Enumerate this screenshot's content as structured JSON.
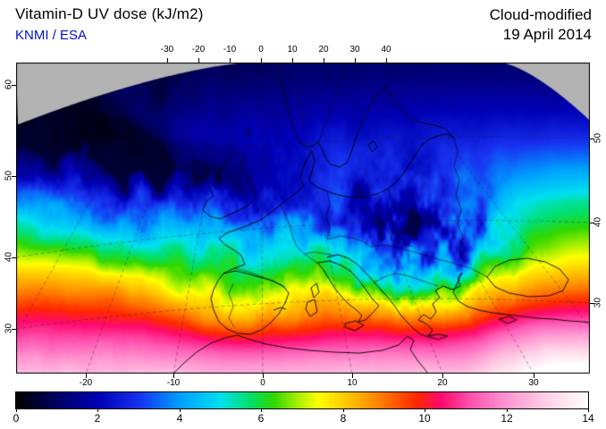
{
  "header": {
    "title": "Vitamin-D UV dose (kJ/m2)",
    "source": "KNMI / ESA",
    "mode": "Cloud-modified",
    "date": "19 April 2014"
  },
  "colors": {
    "source_text": "#0011cc",
    "no_data_gray": "#b2b2b2",
    "background": "#ffffff",
    "coastline": "#000000"
  },
  "axes": {
    "top": [
      "-30",
      "-20",
      "-10",
      "0",
      "10",
      "20",
      "30",
      "40"
    ],
    "bottom": [
      "-20",
      "-10",
      "0",
      "10",
      "20",
      "30"
    ],
    "left": [
      "60",
      "50",
      "40",
      "30"
    ],
    "right": [
      "50",
      "40",
      "30"
    ]
  },
  "colorbar": {
    "labels": [
      "0",
      "2",
      "4",
      "6",
      "8",
      "10",
      "12",
      "14"
    ],
    "min": 0,
    "max": 14,
    "stops": [
      [
        0,
        "#000000"
      ],
      [
        1,
        "#000066"
      ],
      [
        2,
        "#0000b4"
      ],
      [
        3,
        "#1832f0"
      ],
      [
        4,
        "#00a0ff"
      ],
      [
        5,
        "#00e0f0"
      ],
      [
        5.7,
        "#00e070"
      ],
      [
        6.3,
        "#30d800"
      ],
      [
        6.9,
        "#a8f000"
      ],
      [
        7.4,
        "#ffff00"
      ],
      [
        8.2,
        "#ffbe00"
      ],
      [
        9,
        "#ff7800"
      ],
      [
        9.8,
        "#ff2800"
      ],
      [
        10.4,
        "#ff0a6e"
      ],
      [
        11.2,
        "#ff5ab4"
      ],
      [
        12,
        "#ff96d2"
      ],
      [
        13,
        "#ffd2e6"
      ],
      [
        14,
        "#ffffff"
      ]
    ]
  },
  "chart_data": {
    "type": "heatmap",
    "title": "Vitamin-D UV dose (kJ/m2)",
    "subtitle": "Cloud-modified, 19 April 2014, KNMI / ESA",
    "region": "Europe",
    "value_unit": "kJ/m2",
    "value_range": [
      0,
      14
    ],
    "colorbar_tick_labels": [
      "0",
      "2",
      "4",
      "6",
      "8",
      "10",
      "12",
      "14"
    ],
    "x_ticks_top": [
      "-30",
      "-20",
      "-10",
      "0",
      "10",
      "20",
      "30",
      "40"
    ],
    "x_ticks_bottom": [
      "-20",
      "-10",
      "0",
      "10",
      "20",
      "30"
    ],
    "y_ticks_left": [
      "60",
      "50",
      "40",
      "30"
    ],
    "y_ticks_right": [
      "50",
      "40",
      "30"
    ],
    "legend_position": "bottom",
    "no_data_color": "#b2b2b2"
  }
}
